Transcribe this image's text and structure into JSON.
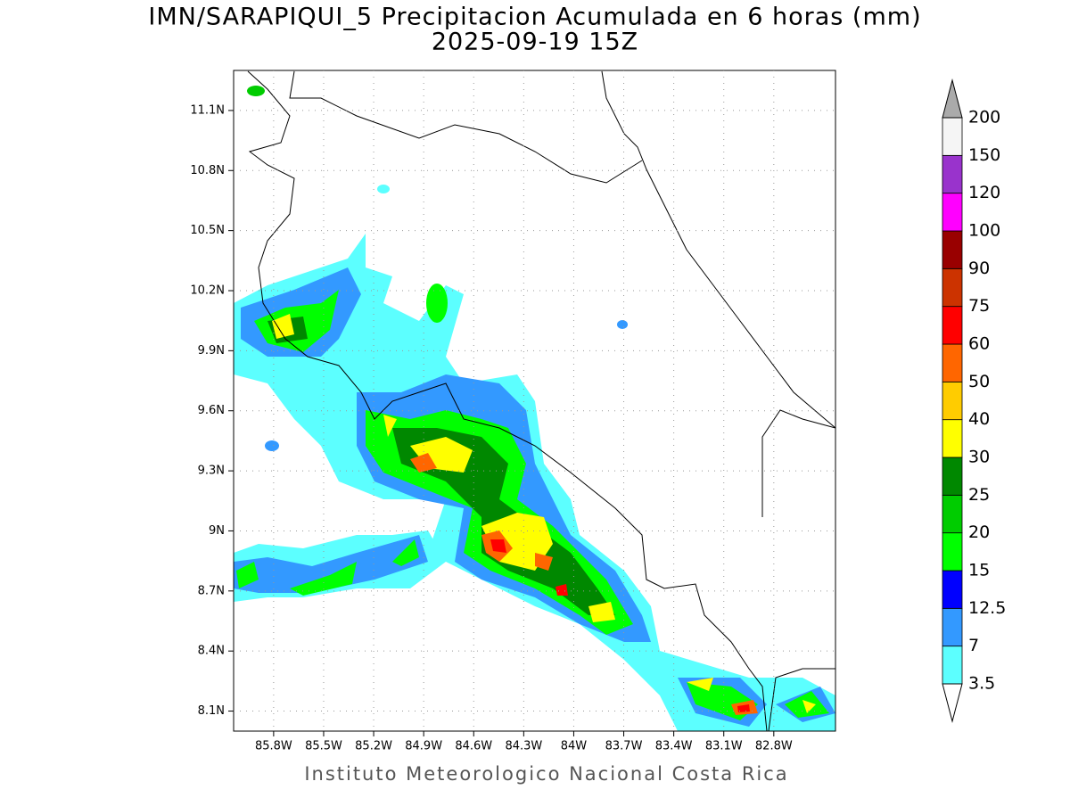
{
  "header": {
    "title": "IMN/SARAPIQUI_5 Precipitacion Acumulada en 6 horas (mm)",
    "subtitle": "2025-09-19 15Z"
  },
  "map": {
    "xlim": [
      -86.04,
      -82.43
    ],
    "ylim": [
      8.0,
      11.3
    ],
    "grid": true,
    "xticks": [
      {
        "value": -85.8,
        "label": "85.8W"
      },
      {
        "value": -85.5,
        "label": "85.5W"
      },
      {
        "value": -85.2,
        "label": "85.2W"
      },
      {
        "value": -84.9,
        "label": "84.9W"
      },
      {
        "value": -84.6,
        "label": "84.6W"
      },
      {
        "value": -84.3,
        "label": "84.3W"
      },
      {
        "value": -84.0,
        "label": "84W"
      },
      {
        "value": -83.7,
        "label": "83.7W"
      },
      {
        "value": -83.4,
        "label": "83.4W"
      },
      {
        "value": -83.1,
        "label": "83.1W"
      },
      {
        "value": -82.8,
        "label": "82.8W"
      }
    ],
    "yticks": [
      {
        "value": 8.1,
        "label": "8.1N"
      },
      {
        "value": 8.4,
        "label": "8.4N"
      },
      {
        "value": 8.7,
        "label": "8.7N"
      },
      {
        "value": 9.0,
        "label": "9N"
      },
      {
        "value": 9.3,
        "label": "9.3N"
      },
      {
        "value": 9.6,
        "label": "9.6N"
      },
      {
        "value": 9.9,
        "label": "9.9N"
      },
      {
        "value": 10.2,
        "label": "10.2N"
      },
      {
        "value": 10.5,
        "label": "10.5N"
      },
      {
        "value": 10.8,
        "label": "10.8N"
      },
      {
        "value": 11.1,
        "label": "11.1N"
      }
    ]
  },
  "colorbar": {
    "levels": [
      3.5,
      7,
      12.5,
      15,
      20,
      25,
      30,
      40,
      50,
      60,
      75,
      90,
      100,
      120,
      150,
      200
    ],
    "colors": [
      "#5cffff",
      "#3399ff",
      "#0000ff",
      "#00ff00",
      "#00cc00",
      "#008800",
      "#ffff00",
      "#ffcc00",
      "#ff6600",
      "#ff0000",
      "#cc3300",
      "#990000",
      "#ff00ff",
      "#9933cc",
      "#f5f5f5"
    ],
    "under_color": "#ffffff",
    "over_color": "#aaaaaa"
  },
  "footer": "Instituto Meteorologico Nacional Costa Rica"
}
